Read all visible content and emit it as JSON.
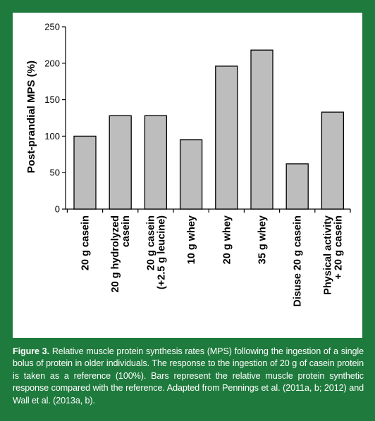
{
  "chart_data": {
    "type": "bar",
    "title": "",
    "xlabel": "",
    "ylabel": "Post-prandial MPS (%)",
    "ylim": [
      0,
      250
    ],
    "yticks": [
      0,
      50,
      100,
      150,
      200,
      250
    ],
    "grid": false,
    "bar_color": "#bdbdbd",
    "categories": [
      [
        "20 g casein"
      ],
      [
        "20 g hydrolyzed",
        "casein"
      ],
      [
        "20 g casein",
        "(+2.5 g leucine)"
      ],
      [
        "10 g whey"
      ],
      [
        "20 g whey"
      ],
      [
        "35 g whey"
      ],
      [
        "Disuse 20 g casein"
      ],
      [
        "Physical activity",
        "+ 20 g casein"
      ]
    ],
    "values": [
      100,
      128,
      128,
      95,
      196,
      218,
      62,
      133
    ]
  },
  "caption": {
    "label": "Figure 3.",
    "text": "Relative muscle protein synthesis rates (MPS) following the ingestion of a single bolus of protein in older individuals. The response to the ingestion of 20 g of casein protein is taken as a reference (100%). Bars represent the relative muscle protein synthetic response compared with the reference. Adapted from Pennings et al. (2011a, b; 2012) and Wall et al. (2013a, b)."
  },
  "colors": {
    "frame": "#1f7a3d",
    "panel": "#ffffff",
    "bar": "#bdbdbd"
  }
}
